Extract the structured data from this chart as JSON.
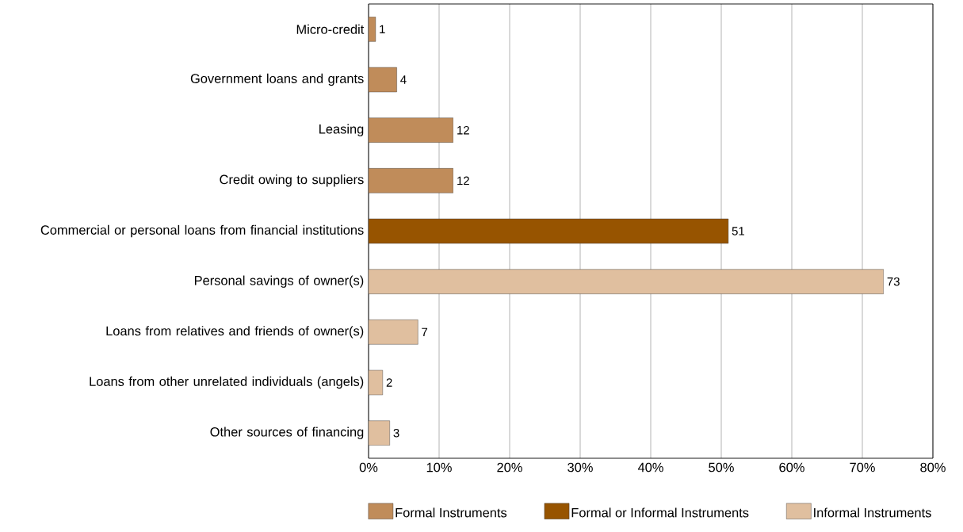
{
  "chart_data": {
    "type": "bar",
    "orientation": "horizontal",
    "categories": [
      "Micro-credit",
      "Government loans and grants",
      "Leasing",
      "Credit owing to suppliers",
      "Commercial or personal loans from financial institutions",
      "Personal savings of owner(s)",
      "Loans from relatives and friends of owner(s)",
      "Loans from other unrelated individuals (angels)",
      "Other sources of financing"
    ],
    "series": [
      {
        "name": "Formal Instruments",
        "color": "#c08c5a",
        "values": [
          1,
          4,
          12,
          12,
          null,
          null,
          null,
          null,
          null
        ]
      },
      {
        "name": "Formal or Informal Instruments",
        "color": "#975400",
        "values": [
          null,
          null,
          null,
          null,
          51,
          null,
          null,
          null,
          null
        ]
      },
      {
        "name": "Informal Instruments",
        "color": "#e0bf9f",
        "values": [
          null,
          null,
          null,
          null,
          null,
          73,
          7,
          2,
          3
        ]
      }
    ],
    "xlim": [
      0,
      80
    ],
    "xticks": [
      {
        "value": 0,
        "label": "0%"
      },
      {
        "value": 10,
        "label": "10%"
      },
      {
        "value": 20,
        "label": "20%"
      },
      {
        "value": 30,
        "label": "30%"
      },
      {
        "value": 40,
        "label": "40%"
      },
      {
        "value": 50,
        "label": "50%"
      },
      {
        "value": 60,
        "label": "60%"
      },
      {
        "value": 70,
        "label": "70%"
      },
      {
        "value": 80,
        "label": "80%"
      }
    ],
    "grid": "x",
    "legend": "bottom",
    "data_labels": true
  }
}
